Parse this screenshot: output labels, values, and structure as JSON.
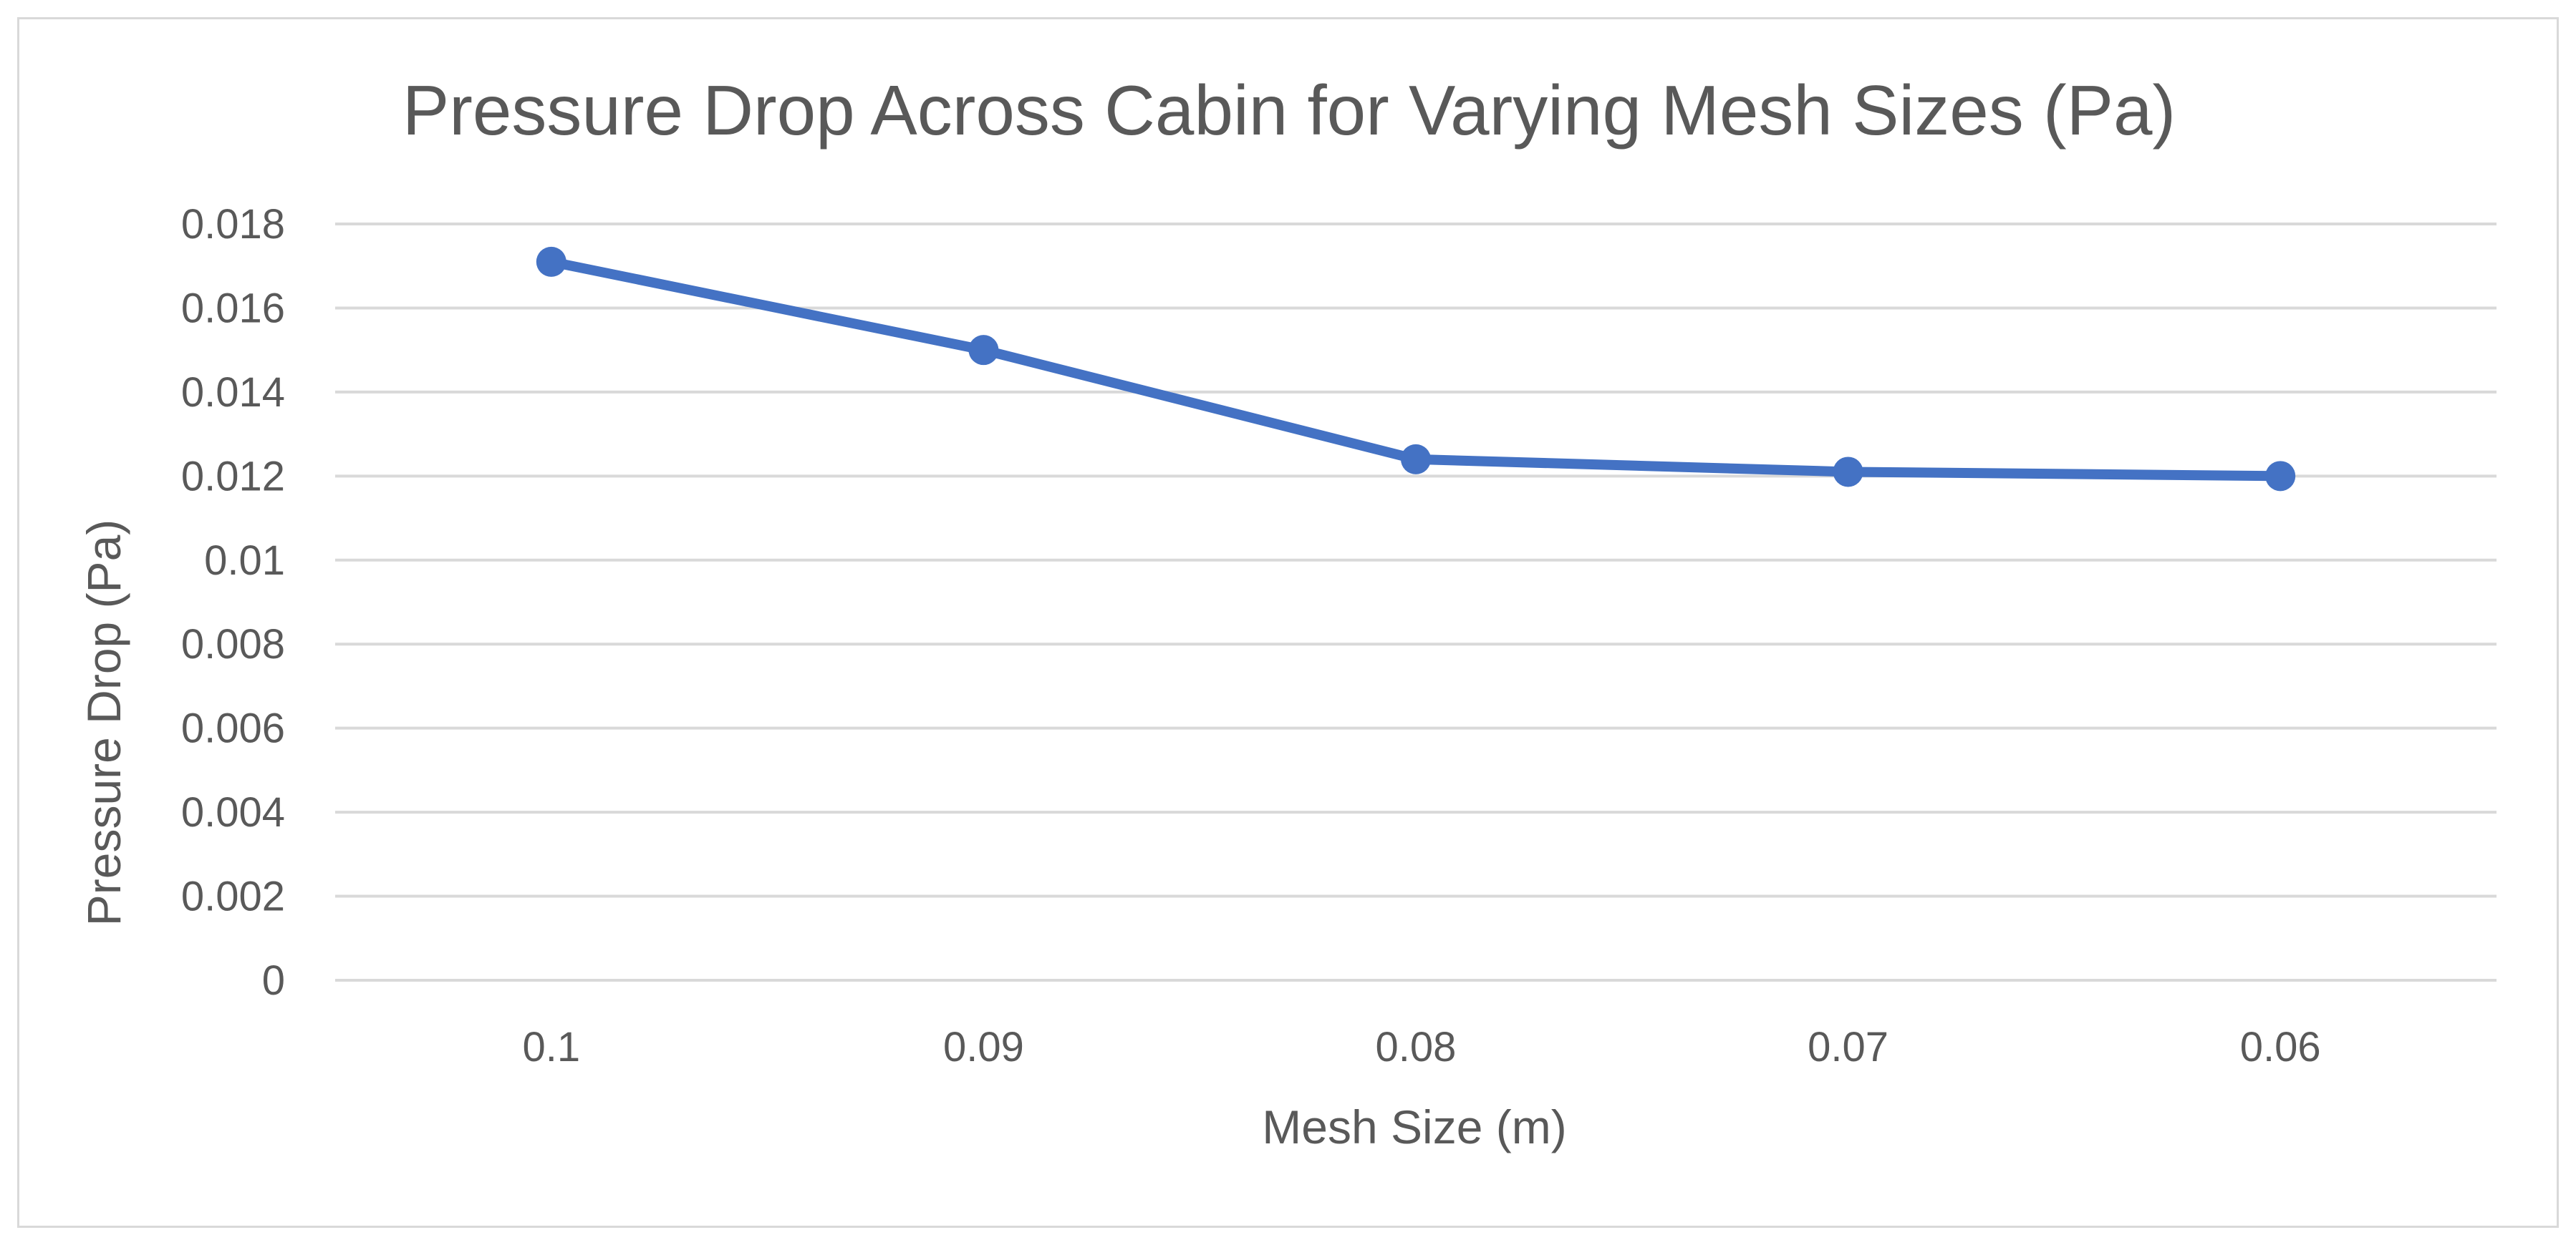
{
  "chart_data": {
    "type": "line",
    "title": "Pressure Drop Across Cabin for Varying Mesh Sizes (Pa)",
    "xlabel": "Mesh Size (m)",
    "ylabel": "Pressure Drop (Pa)",
    "categories": [
      "0.1",
      "0.09",
      "0.08",
      "0.07",
      "0.06"
    ],
    "y_ticks": [
      "0",
      "0.002",
      "0.004",
      "0.006",
      "0.008",
      "0.01",
      "0.012",
      "0.014",
      "0.016",
      "0.018"
    ],
    "ylim": [
      0,
      0.018
    ],
    "grid": true,
    "legend": "none",
    "series": [
      {
        "values": [
          0.0171,
          0.015,
          0.0124,
          0.0121,
          0.012
        ],
        "color": "#4472c4"
      }
    ]
  }
}
